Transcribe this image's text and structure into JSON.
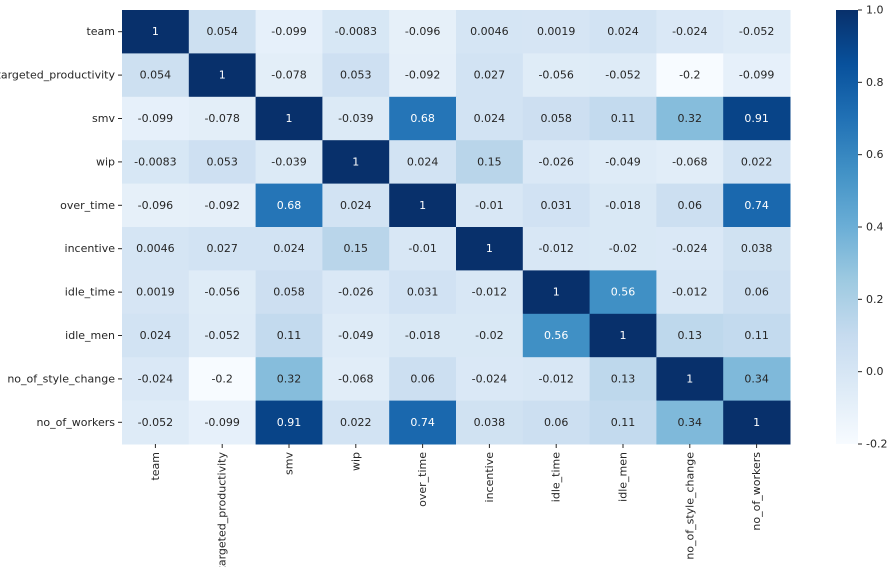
{
  "chart_data": {
    "type": "heatmap",
    "title": "",
    "xlabel": "",
    "ylabel": "",
    "labels": [
      "team",
      "targeted_productivity",
      "smv",
      "wip",
      "over_time",
      "incentive",
      "idle_time",
      "idle_men",
      "no_of_style_change",
      "no_of_workers"
    ],
    "matrix_text": [
      [
        "1",
        "0.054",
        "-0.099",
        "-0.0083",
        "-0.096",
        "0.0046",
        "0.0019",
        "0.024",
        "-0.024",
        "-0.052"
      ],
      [
        "0.054",
        "1",
        "-0.078",
        "0.053",
        "-0.092",
        "0.027",
        "-0.056",
        "-0.052",
        "-0.2",
        "-0.099"
      ],
      [
        "-0.099",
        "-0.078",
        "1",
        "-0.039",
        "0.68",
        "0.024",
        "0.058",
        "0.11",
        "0.32",
        "0.91"
      ],
      [
        "-0.0083",
        "0.053",
        "-0.039",
        "1",
        "0.024",
        "0.15",
        "-0.026",
        "-0.049",
        "-0.068",
        "0.022"
      ],
      [
        "-0.096",
        "-0.092",
        "0.68",
        "0.024",
        "1",
        "-0.01",
        "0.031",
        "-0.018",
        "0.06",
        "0.74"
      ],
      [
        "0.0046",
        "0.027",
        "0.024",
        "0.15",
        "-0.01",
        "1",
        "-0.012",
        "-0.02",
        "-0.024",
        "0.038"
      ],
      [
        "0.0019",
        "-0.056",
        "0.058",
        "-0.026",
        "0.031",
        "-0.012",
        "1",
        "0.56",
        "-0.012",
        "0.06"
      ],
      [
        "0.024",
        "-0.052",
        "0.11",
        "-0.049",
        "-0.018",
        "-0.02",
        "0.56",
        "1",
        "0.13",
        "0.11"
      ],
      [
        "-0.024",
        "-0.2",
        "0.32",
        "-0.068",
        "0.06",
        "-0.024",
        "-0.012",
        "0.13",
        "1",
        "0.34"
      ],
      [
        "-0.052",
        "-0.099",
        "0.91",
        "0.022",
        "0.74",
        "0.038",
        "0.06",
        "0.11",
        "0.34",
        "1"
      ]
    ],
    "colorbar": {
      "range": [
        -0.2,
        1.0
      ],
      "ticks": [
        "1.0",
        "0.8",
        "0.6",
        "0.4",
        "0.2",
        "0.0",
        "-0.2"
      ],
      "tick_values": [
        1.0,
        0.8,
        0.6,
        0.4,
        0.2,
        0.0,
        -0.2
      ],
      "colormap": "Blues",
      "stops": [
        "#f7fbff",
        "#deebf7",
        "#c6dbef",
        "#9ecae1",
        "#6baed6",
        "#4292c6",
        "#2171b5",
        "#08519c",
        "#08306b"
      ]
    }
  }
}
